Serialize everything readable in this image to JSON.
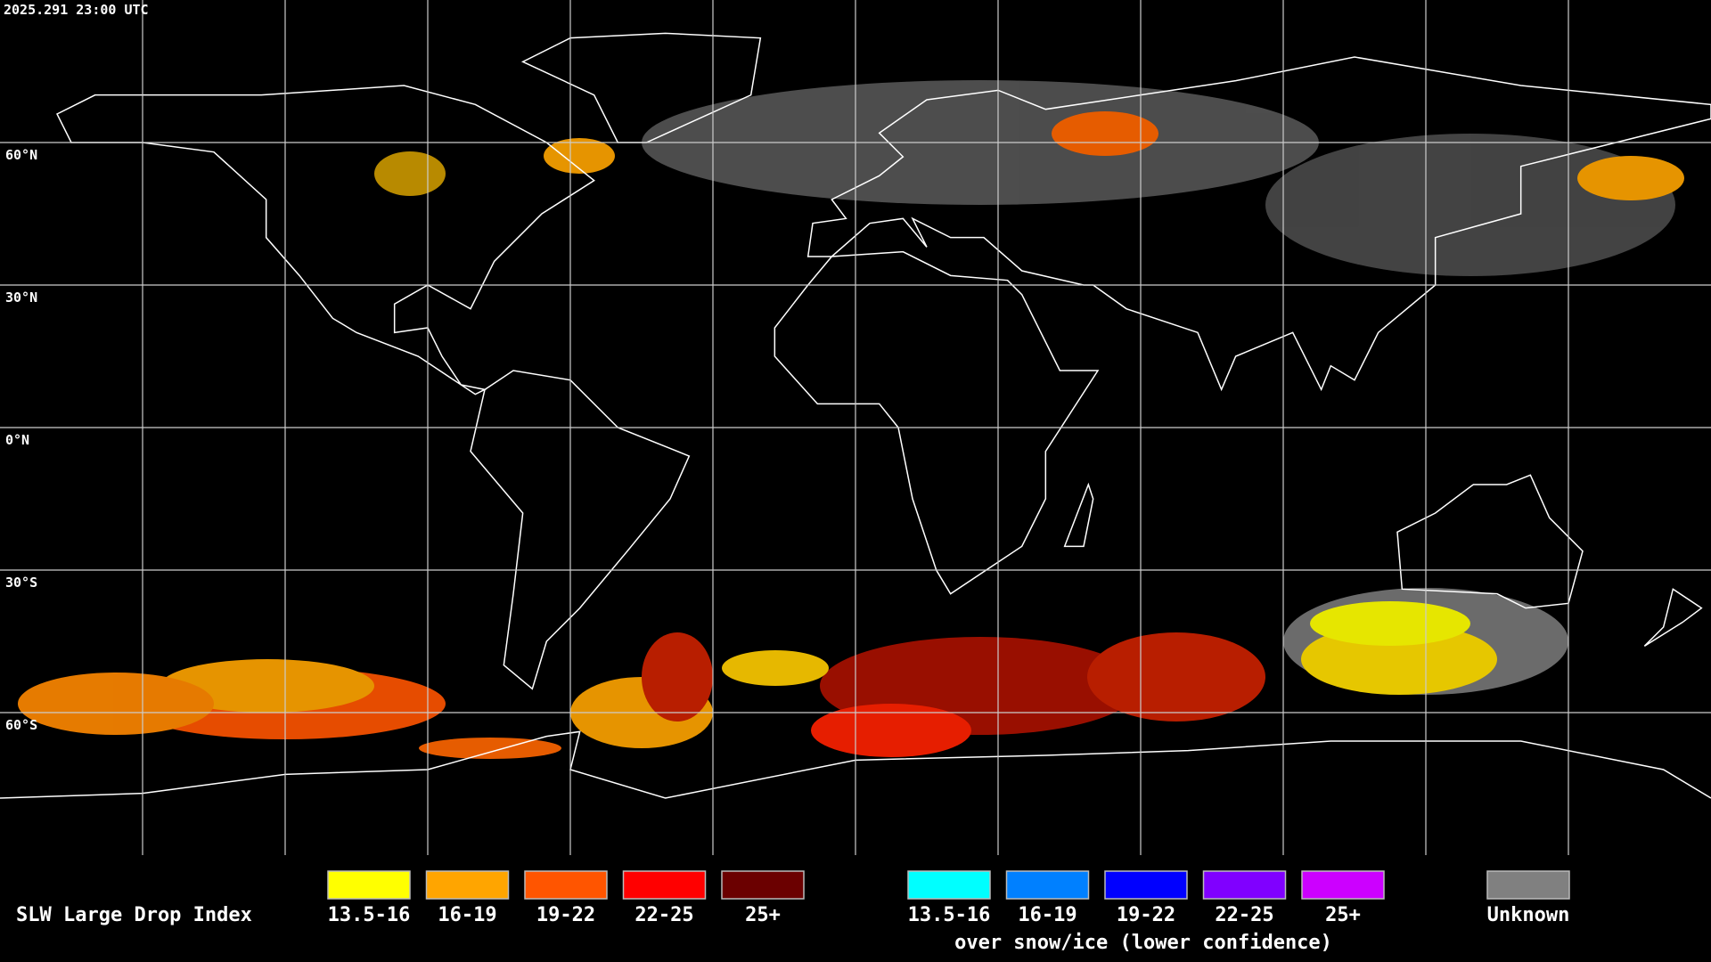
{
  "timestamp": "2025.291 23:00 UTC",
  "grid_labels": [
    "60°N",
    "30°N",
    "0°N",
    "30°S",
    "60°S"
  ],
  "legend": {
    "title": "SLW Large Drop Index",
    "groups": [
      {
        "items": [
          {
            "label": "13.5-16",
            "color": "#ffff00"
          },
          {
            "label": "16-19",
            "color": "#ffa500"
          },
          {
            "label": "19-22",
            "color": "#ff5500"
          },
          {
            "label": "22-25",
            "color": "#ff0000"
          },
          {
            "label": "25+",
            "color": "#6b0000"
          }
        ]
      },
      {
        "items": [
          {
            "label": "13.5-16",
            "color": "#00ffff"
          },
          {
            "label": "16-19",
            "color": "#0080ff"
          },
          {
            "label": "19-22",
            "color": "#0000ff"
          },
          {
            "label": "22-25",
            "color": "#8000ff"
          },
          {
            "label": "25+",
            "color": "#cc00ff"
          }
        ],
        "caption": "over snow/ice (lower confidence)"
      },
      {
        "items": [
          {
            "label": "Unknown",
            "color": "#808080"
          }
        ]
      }
    ]
  }
}
